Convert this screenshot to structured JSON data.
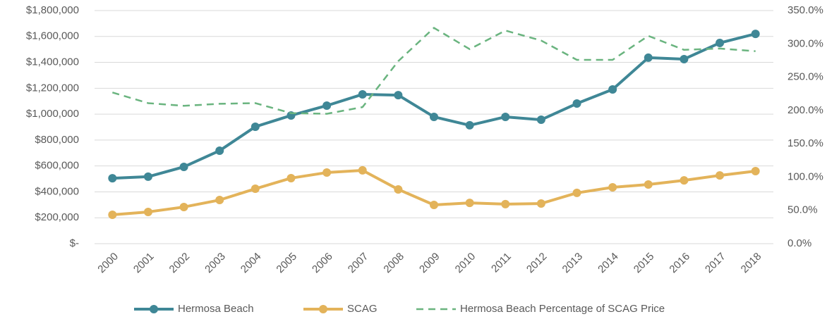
{
  "chart_data": {
    "type": "line",
    "categories": [
      "2000",
      "2001",
      "2002",
      "2003",
      "2004",
      "2005",
      "2006",
      "2007",
      "2008",
      "2009",
      "2010",
      "2011",
      "2012",
      "2013",
      "2014",
      "2015",
      "2016",
      "2017",
      "2018"
    ],
    "series": [
      {
        "name": "Hermosa Beach",
        "color": "#3f8796",
        "marker": true,
        "values": [
          505000,
          517000,
          593000,
          718000,
          903000,
          990000,
          1066000,
          1153000,
          1147000,
          979000,
          914000,
          979000,
          957000,
          1082000,
          1191000,
          1436000,
          1425000,
          1550000,
          1620000
        ]
      },
      {
        "name": "SCAG",
        "color": "#e3b35a",
        "marker": true,
        "values": [
          223000,
          245000,
          283000,
          337000,
          424000,
          506000,
          549000,
          566000,
          419000,
          299000,
          315000,
          305000,
          310000,
          392000,
          435000,
          457000,
          489000,
          527000,
          560000
        ]
      },
      {
        "name": "Hermosa Beach Percentage of SCAG Price",
        "color": "#6ab47f",
        "dashed": true,
        "axis": "y2",
        "values": [
          227,
          211,
          207,
          210,
          211,
          196,
          195,
          205,
          274,
          324,
          292,
          320,
          305,
          276,
          276,
          312,
          291,
          293,
          289
        ]
      }
    ],
    "ylim": [
      0,
      1800000
    ],
    "yticks": [
      {
        "value": 0,
        "label": "$-"
      },
      {
        "value": 200000,
        "label": "$200,000"
      },
      {
        "value": 400000,
        "label": "$400,000"
      },
      {
        "value": 600000,
        "label": "$600,000"
      },
      {
        "value": 800000,
        "label": "$800,000"
      },
      {
        "value": 1000000,
        "label": "$1,000,000"
      },
      {
        "value": 1200000,
        "label": "$1,200,000"
      },
      {
        "value": 1400000,
        "label": "$1,400,000"
      },
      {
        "value": 1600000,
        "label": "$1,600,000"
      },
      {
        "value": 1800000,
        "label": "$1,800,000"
      }
    ],
    "y2lim": [
      0,
      350
    ],
    "y2ticks": [
      {
        "value": 0,
        "label": "0.0%"
      },
      {
        "value": 50,
        "label": "50.0%"
      },
      {
        "value": 100,
        "label": "100.0%"
      },
      {
        "value": 150,
        "label": "150.0%"
      },
      {
        "value": 200,
        "label": "200.0%"
      },
      {
        "value": 250,
        "label": "250.0%"
      },
      {
        "value": 300,
        "label": "300.0%"
      },
      {
        "value": 350,
        "label": "350.0%"
      }
    ],
    "grid": true,
    "legend": "bottom"
  }
}
